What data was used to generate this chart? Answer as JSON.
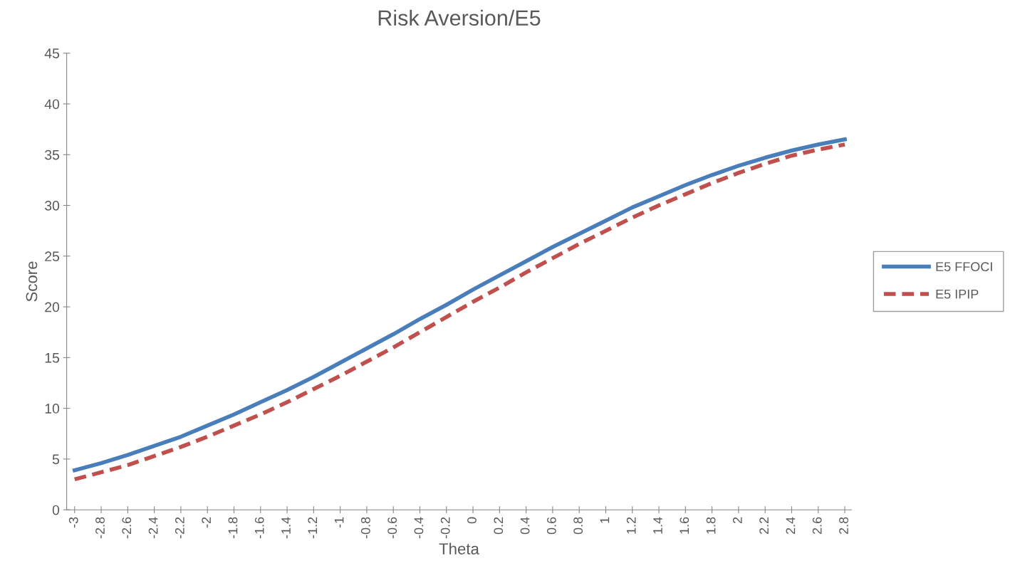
{
  "chart_data": {
    "type": "line",
    "title": "Risk Aversion/E5",
    "xlabel": "Theta",
    "ylabel": "Score",
    "categories": [
      "-3",
      "-2.8",
      "-2.6",
      "-2.4",
      "-2.2",
      "-2",
      "-1.8",
      "-1.6",
      "-1.4",
      "-1.2",
      "-1",
      "-0.8",
      "-0.6",
      "-0.4",
      "-0.2",
      "0",
      "0.2",
      "0.4",
      "0.6",
      "0.8",
      "1",
      "1.2",
      "1.4",
      "1.6",
      "1.8",
      "2",
      "2.2",
      "2.4",
      "2.6",
      "2.8"
    ],
    "series": [
      {
        "name": "E5 FFOCI",
        "color": "#4a7ebb",
        "line_style": "solid",
        "values": [
          3.9,
          4.6,
          5.4,
          6.3,
          7.2,
          8.3,
          9.4,
          10.6,
          11.8,
          13.1,
          14.5,
          15.9,
          17.3,
          18.8,
          20.2,
          21.7,
          23.1,
          24.5,
          25.9,
          27.2,
          28.5,
          29.8,
          30.9,
          32.0,
          33.0,
          33.9,
          34.7,
          35.4,
          36.0,
          36.5
        ]
      },
      {
        "name": "E5 IPIP",
        "color": "#c0504d",
        "line_style": "dashed",
        "values": [
          3.0,
          3.7,
          4.4,
          5.3,
          6.2,
          7.2,
          8.3,
          9.4,
          10.6,
          11.9,
          13.2,
          14.6,
          16.0,
          17.5,
          19.0,
          20.5,
          21.9,
          23.4,
          24.8,
          26.2,
          27.5,
          28.8,
          30.0,
          31.1,
          32.2,
          33.2,
          34.1,
          34.9,
          35.5,
          36.0
        ]
      }
    ],
    "ylim": [
      0,
      45
    ],
    "yticks": [
      0,
      5,
      10,
      15,
      20,
      25,
      30,
      35,
      40,
      45
    ],
    "grid": false,
    "legend": "right",
    "marker": "none"
  }
}
